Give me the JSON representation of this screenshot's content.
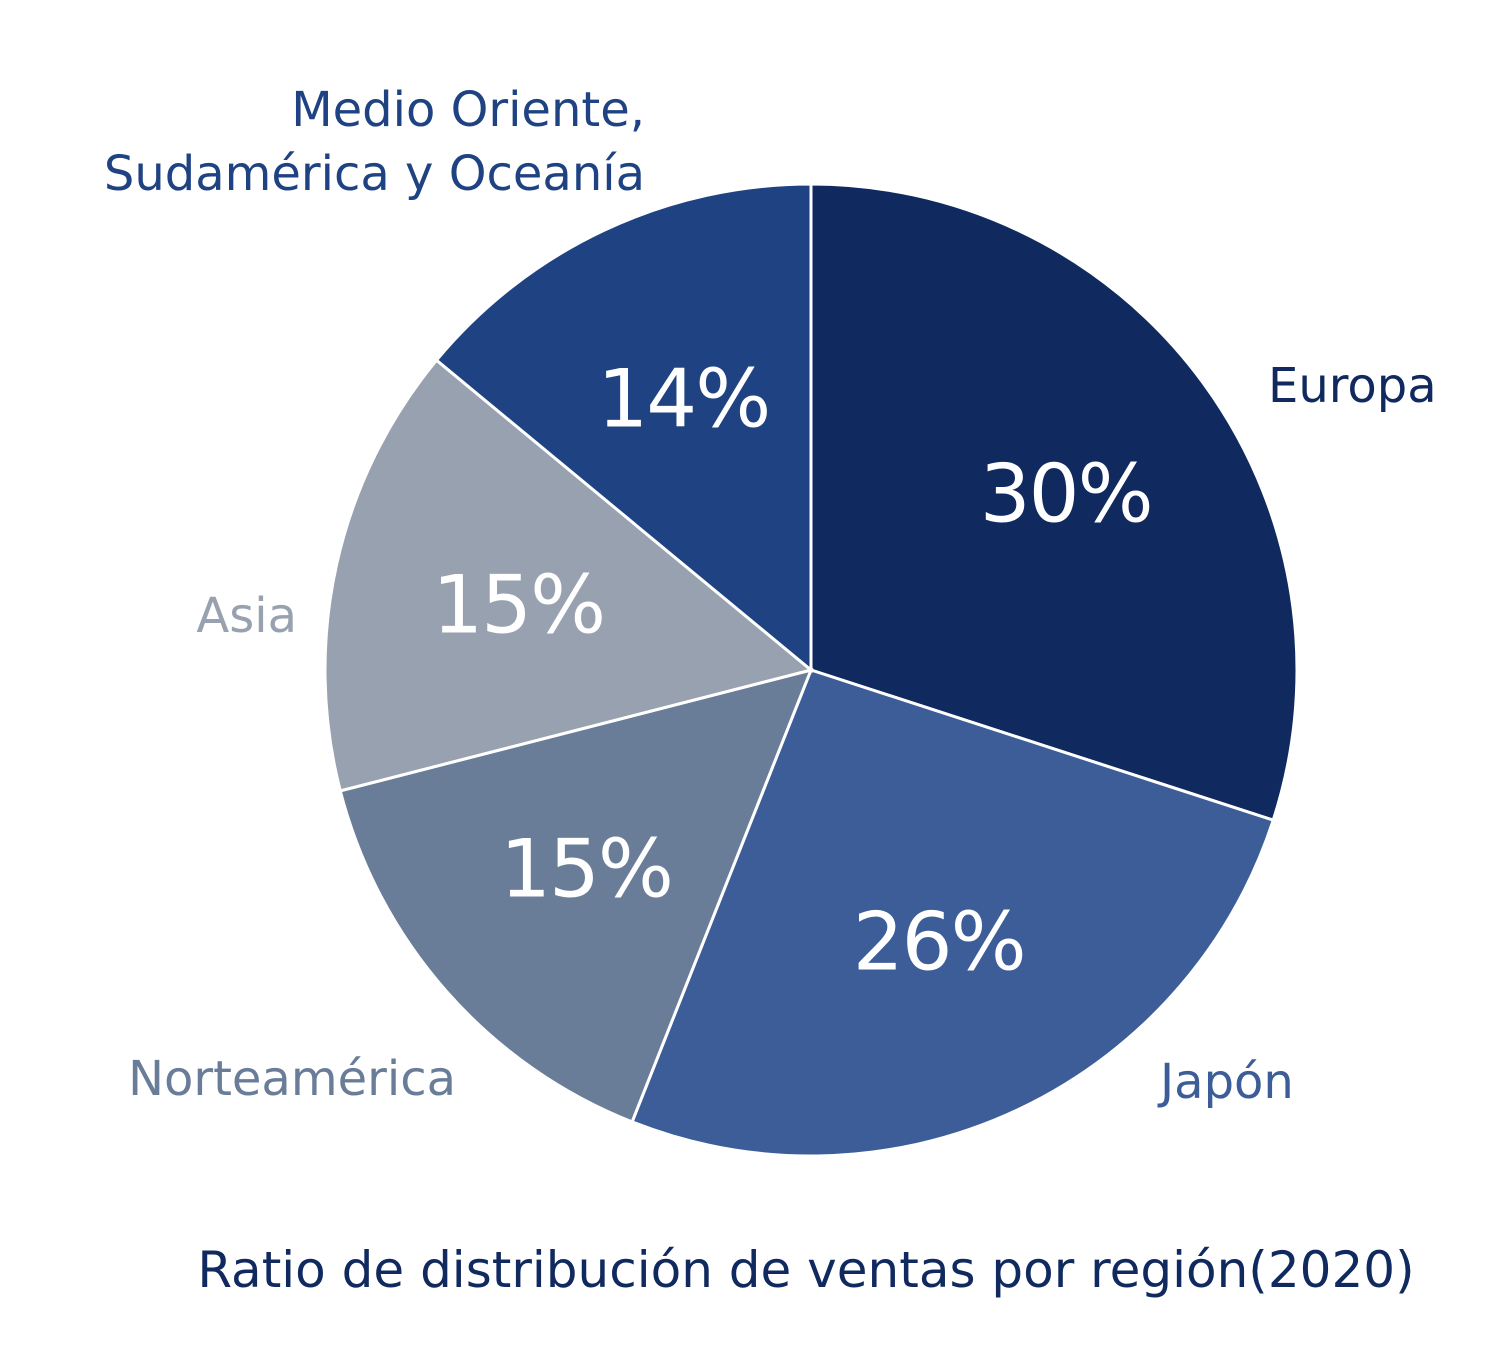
{
  "chart_data": {
    "type": "pie",
    "title": "Ratio de distribución de ventas por región(2020)",
    "start_angle_deg": 0,
    "direction": "clockwise",
    "categories": [
      "Europa",
      "Japón",
      "Norteamérica",
      "Asia",
      "Medio Oriente, Sudamérica y Oceanía"
    ],
    "category_lines": [
      [
        "Europa"
      ],
      [
        "Japón"
      ],
      [
        "Norteamérica"
      ],
      [
        "Asia"
      ],
      [
        "Medio Oriente,",
        "Sudamérica y Oceanía"
      ]
    ],
    "values": [
      30,
      26,
      15,
      15,
      14
    ],
    "value_labels": [
      "30%",
      "26%",
      "15%",
      "15%",
      "14%"
    ],
    "slice_colors": [
      "#10295e",
      "#3c5d98",
      "#6a7d98",
      "#98a1af",
      "#1f4282"
    ],
    "label_colors": [
      "#10295e",
      "#3c5d98",
      "#6a7d98",
      "#98a1af",
      "#1f4282"
    ],
    "title_color": "#10295e",
    "legend": "none"
  }
}
